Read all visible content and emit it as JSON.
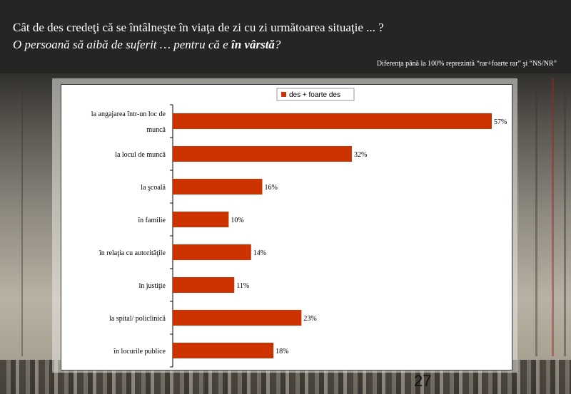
{
  "slide": {
    "title_line1": "Cât de des credeţi că se întâlneşte în viaţa de zi cu zi următoarea situaţie ... ?",
    "title_line2_prefix": "O persoană să aibă de suferit … pentru că e ",
    "title_line2_bold": "în vârstă",
    "title_line2_suffix": "?",
    "note": "Diferenţa până la 100% reprezintă  “rar+foarte rar” şi “NS/NR”",
    "page_number": "27"
  },
  "colors": {
    "bar": "#cc3300",
    "header_bg": "#262523"
  },
  "chart_data": {
    "type": "bar",
    "orientation": "horizontal",
    "categories": [
      "la angajarea într-un loc de muncă",
      "la locul de muncă",
      "la şcoală",
      "în familie",
      "în relaţia cu autorităţile",
      "în justiţie",
      "la spital/ policlinică",
      "în locurile publice"
    ],
    "category_lines": [
      [
        "la angajarea într-un loc de",
        "muncă"
      ],
      [
        "la locul de muncă"
      ],
      [
        "la şcoală"
      ],
      [
        "în familie"
      ],
      [
        "în relaţia cu autorităţile"
      ],
      [
        "în justiţie"
      ],
      [
        "la spital/ policlinică"
      ],
      [
        "în locurile publice"
      ]
    ],
    "series": [
      {
        "name": "des + foarte des",
        "values": [
          57,
          32,
          16,
          10,
          14,
          11,
          23,
          18
        ]
      }
    ],
    "value_labels": [
      "57%",
      "32%",
      "16%",
      "10%",
      "14%",
      "11%",
      "23%",
      "18%"
    ],
    "xlim": [
      0,
      57
    ],
    "grid": false,
    "legend_position": "top"
  }
}
